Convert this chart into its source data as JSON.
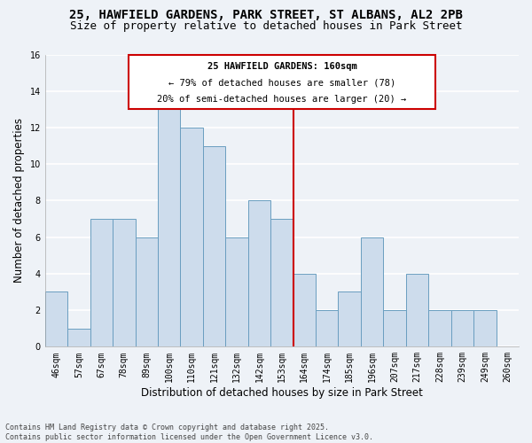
{
  "title_line1": "25, HAWFIELD GARDENS, PARK STREET, ST ALBANS, AL2 2PB",
  "title_line2": "Size of property relative to detached houses in Park Street",
  "xlabel": "Distribution of detached houses by size in Park Street",
  "ylabel": "Number of detached properties",
  "categories": [
    "46sqm",
    "57sqm",
    "67sqm",
    "78sqm",
    "89sqm",
    "100sqm",
    "110sqm",
    "121sqm",
    "132sqm",
    "142sqm",
    "153sqm",
    "164sqm",
    "174sqm",
    "185sqm",
    "196sqm",
    "207sqm",
    "217sqm",
    "228sqm",
    "239sqm",
    "249sqm",
    "260sqm"
  ],
  "values": [
    3,
    1,
    7,
    7,
    6,
    13,
    12,
    11,
    6,
    8,
    7,
    4,
    2,
    3,
    6,
    2,
    4,
    2,
    2,
    2,
    0
  ],
  "bar_color": "#cddcec",
  "bar_edge_color": "#6a9ec0",
  "annotation_title": "25 HAWFIELD GARDENS: 160sqm",
  "annotation_line2": "← 79% of detached houses are smaller (78)",
  "annotation_line3": "20% of semi-detached houses are larger (20) →",
  "annotation_box_color": "#cc0000",
  "annotation_text_color": "#000000",
  "ylim": [
    0,
    16
  ],
  "yticks": [
    0,
    2,
    4,
    6,
    8,
    10,
    12,
    14,
    16
  ],
  "highlight_line_after_index": 10,
  "footer_line1": "Contains HM Land Registry data © Crown copyright and database right 2025.",
  "footer_line2": "Contains public sector information licensed under the Open Government Licence v3.0.",
  "bg_color": "#eef2f7",
  "grid_color": "#ffffff",
  "title_fontsize": 10,
  "subtitle_fontsize": 9,
  "label_fontsize": 8.5,
  "tick_fontsize": 7,
  "ann_fontsize": 7.5
}
